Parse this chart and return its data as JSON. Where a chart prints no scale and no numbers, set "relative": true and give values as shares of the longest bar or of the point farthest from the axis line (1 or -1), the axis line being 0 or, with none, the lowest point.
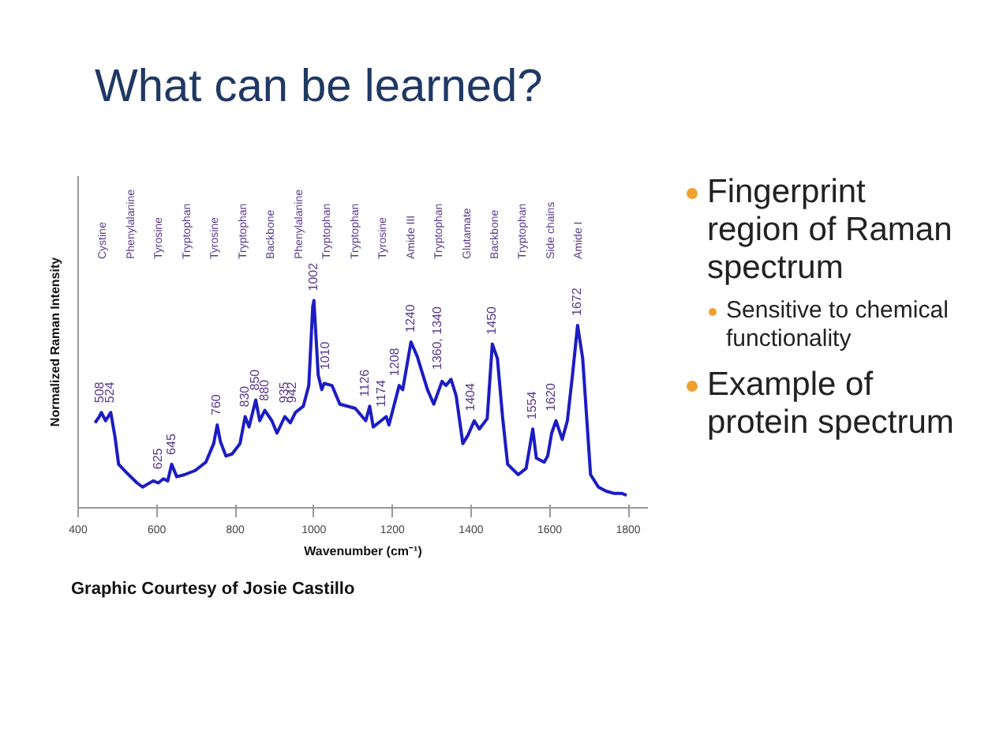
{
  "chart_data": {
    "type": "line",
    "relative": true,
    "title": "What can be learned?",
    "xlabel": "Wavenumber (cm⁻¹)",
    "ylabel": "Normalized Raman Intensity",
    "x": [
      443,
      454,
      459,
      470,
      483,
      494,
      503,
      523,
      550,
      564,
      591,
      604,
      617,
      628,
      638,
      651,
      671,
      698,
      725,
      745,
      754,
      762,
      776,
      792,
      812,
      825,
      835,
      852,
      862,
      875,
      893,
      906,
      926,
      940,
      953,
      973,
      987,
      997,
      1000,
      1011,
      1020,
      1026,
      1046,
      1066,
      1105,
      1132,
      1142,
      1151,
      1171,
      1184,
      1191,
      1217,
      1226,
      1247,
      1263,
      1289,
      1305,
      1326,
      1336,
      1349,
      1362,
      1379,
      1392,
      1408,
      1421,
      1441,
      1454,
      1467,
      1480,
      1493,
      1520,
      1540,
      1557,
      1566,
      1586,
      1595,
      1605,
      1616,
      1632,
      1645,
      1658,
      1671,
      1684,
      1704,
      1724,
      1744,
      1763,
      1783,
      1796
    ],
    "series": [
      {
        "color": "#1c1cc4",
        "values": [
          0.41,
          0.44,
          0.46,
          0.42,
          0.46,
          0.34,
          0.21,
          0.17,
          0.12,
          0.1,
          0.13,
          0.12,
          0.14,
          0.13,
          0.21,
          0.15,
          0.16,
          0.18,
          0.22,
          0.31,
          0.4,
          0.32,
          0.25,
          0.26,
          0.31,
          0.44,
          0.39,
          0.52,
          0.42,
          0.47,
          0.42,
          0.36,
          0.44,
          0.41,
          0.46,
          0.49,
          0.59,
          0.97,
          1.0,
          0.64,
          0.57,
          0.6,
          0.59,
          0.5,
          0.48,
          0.42,
          0.49,
          0.39,
          0.42,
          0.44,
          0.4,
          0.59,
          0.57,
          0.8,
          0.73,
          0.57,
          0.5,
          0.61,
          0.59,
          0.62,
          0.54,
          0.31,
          0.35,
          0.42,
          0.38,
          0.43,
          0.79,
          0.72,
          0.44,
          0.21,
          0.16,
          0.19,
          0.38,
          0.24,
          0.22,
          0.25,
          0.36,
          0.42,
          0.33,
          0.42,
          0.64,
          0.88,
          0.72,
          0.16,
          0.1,
          0.08,
          0.07,
          0.07,
          0.06
        ]
      }
    ],
    "xlim": [
      400,
      1850
    ],
    "xticks": [
      400,
      600,
      800,
      1000,
      1200,
      1400,
      1600,
      1800
    ],
    "grid": false,
    "line_style": "solid",
    "marker": "none",
    "annotations": [
      {
        "text": "508",
        "x": 456,
        "y": 0.46
      },
      {
        "text": "524",
        "x": 483,
        "y": 0.46
      },
      {
        "text": "625",
        "x": 604,
        "y": 0.14
      },
      {
        "text": "645",
        "x": 638,
        "y": 0.21
      },
      {
        "text": "760",
        "x": 754,
        "y": 0.4
      },
      {
        "text": "830",
        "x": 825,
        "y": 0.44
      },
      {
        "text": "850",
        "x": 852,
        "y": 0.52
      },
      {
        "text": "880",
        "x": 875,
        "y": 0.47
      },
      {
        "text": "935",
        "x": 926,
        "y": 0.46
      },
      {
        "text": "942",
        "x": 946,
        "y": 0.46
      },
      {
        "text": "1002",
        "x": 1000,
        "y": 1.0
      },
      {
        "text": "1010",
        "x": 1030,
        "y": 0.62
      },
      {
        "text": "1126",
        "x": 1132,
        "y": 0.49
      },
      {
        "text": "1174",
        "x": 1174,
        "y": 0.44
      },
      {
        "text": "1208",
        "x": 1208,
        "y": 0.59
      },
      {
        "text": "1240",
        "x": 1247,
        "y": 0.8
      },
      {
        "text": "1360, 1340",
        "x": 1318,
        "y": 0.62
      },
      {
        "text": "1404",
        "x": 1401,
        "y": 0.42
      },
      {
        "text": "1450",
        "x": 1454,
        "y": 0.79
      },
      {
        "text": "1554",
        "x": 1557,
        "y": 0.38
      },
      {
        "text": "1620",
        "x": 1605,
        "y": 0.42
      },
      {
        "text": "1672",
        "x": 1671,
        "y": 0.88
      },
      "Graphic Courtesy of Josie Castillo",
      "Fingerprint region of Raman spectrum",
      "Sensitive to chemical functionality",
      "Example of protein spectrum",
      "Cystine",
      "Phenylalanine",
      "Tyrosine",
      "Tryptophan",
      "Tyrosine",
      "Tryptophan",
      "Backbone",
      "Phenylalanine",
      "Tryptophan",
      "Tryptophan",
      "Tyrosine",
      "Amide III",
      "Tryptophan",
      "Glutamate",
      "Backbone",
      "Tryptophan",
      "Side chains",
      "Amide I"
    ]
  }
}
